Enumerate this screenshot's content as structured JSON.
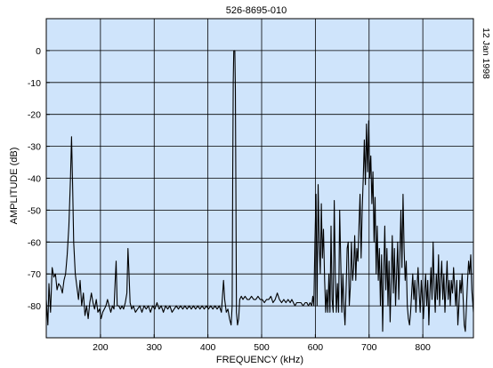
{
  "chart_data": {
    "type": "line",
    "title": "526-8695-010",
    "date_label": "12 Jan 1998",
    "xlabel": "FREQUENCY (kHz)",
    "ylabel": "AMPLITUDE (dB)",
    "xlim": [
      100,
      895
    ],
    "ylim": [
      -90,
      10
    ],
    "x_ticks": [
      200,
      300,
      400,
      500,
      600,
      700,
      800
    ],
    "y_ticks": [
      0,
      -10,
      -20,
      -30,
      -40,
      -50,
      -60,
      -70,
      -80
    ],
    "grid": true,
    "plot_background": "#cfe4fb",
    "line_color": "#000000",
    "series": [
      {
        "values": [
          [
            100,
            -78
          ],
          [
            103,
            -86
          ],
          [
            105,
            -73
          ],
          [
            108,
            -82
          ],
          [
            111,
            -68
          ],
          [
            114,
            -71
          ],
          [
            117,
            -70
          ],
          [
            120,
            -75
          ],
          [
            123,
            -73
          ],
          [
            127,
            -74
          ],
          [
            130,
            -76
          ],
          [
            133,
            -72
          ],
          [
            136,
            -70
          ],
          [
            139,
            -64
          ],
          [
            142,
            -55
          ],
          [
            145,
            -40
          ],
          [
            147,
            -27
          ],
          [
            149,
            -42
          ],
          [
            151,
            -60
          ],
          [
            154,
            -70
          ],
          [
            157,
            -74
          ],
          [
            160,
            -78
          ],
          [
            163,
            -72
          ],
          [
            166,
            -80
          ],
          [
            169,
            -76
          ],
          [
            172,
            -83
          ],
          [
            175,
            -80
          ],
          [
            178,
            -84
          ],
          [
            181,
            -79
          ],
          [
            184,
            -76
          ],
          [
            187,
            -79
          ],
          [
            190,
            -81
          ],
          [
            193,
            -78
          ],
          [
            196,
            -82
          ],
          [
            199,
            -81
          ],
          [
            202,
            -84
          ],
          [
            205,
            -82
          ],
          [
            208,
            -81
          ],
          [
            211,
            -80
          ],
          [
            214,
            -78
          ],
          [
            217,
            -80
          ],
          [
            220,
            -82
          ],
          [
            223,
            -80
          ],
          [
            226,
            -81
          ],
          [
            228,
            -73
          ],
          [
            230,
            -66
          ],
          [
            232,
            -80
          ],
          [
            235,
            -80
          ],
          [
            238,
            -81
          ],
          [
            241,
            -80
          ],
          [
            244,
            -81
          ],
          [
            247,
            -79
          ],
          [
            250,
            -76
          ],
          [
            252,
            -62
          ],
          [
            254,
            -70
          ],
          [
            256,
            -79
          ],
          [
            259,
            -81
          ],
          [
            262,
            -80
          ],
          [
            266,
            -82
          ],
          [
            270,
            -81
          ],
          [
            274,
            -80
          ],
          [
            278,
            -82
          ],
          [
            282,
            -80
          ],
          [
            286,
            -81
          ],
          [
            290,
            -80
          ],
          [
            294,
            -82
          ],
          [
            298,
            -80
          ],
          [
            302,
            -81
          ],
          [
            306,
            -79
          ],
          [
            310,
            -81
          ],
          [
            314,
            -80
          ],
          [
            318,
            -82
          ],
          [
            322,
            -80
          ],
          [
            326,
            -81
          ],
          [
            330,
            -80
          ],
          [
            334,
            -82
          ],
          [
            338,
            -81
          ],
          [
            342,
            -80
          ],
          [
            346,
            -81
          ],
          [
            350,
            -80
          ],
          [
            354,
            -81
          ],
          [
            358,
            -80
          ],
          [
            362,
            -81
          ],
          [
            366,
            -80
          ],
          [
            370,
            -81
          ],
          [
            374,
            -80
          ],
          [
            378,
            -81
          ],
          [
            382,
            -80
          ],
          [
            386,
            -81
          ],
          [
            390,
            -80
          ],
          [
            394,
            -81
          ],
          [
            398,
            -80
          ],
          [
            402,
            -81
          ],
          [
            406,
            -80
          ],
          [
            410,
            -81
          ],
          [
            414,
            -80
          ],
          [
            418,
            -81
          ],
          [
            422,
            -80
          ],
          [
            426,
            -82
          ],
          [
            428,
            -77
          ],
          [
            430,
            -72
          ],
          [
            432,
            -78
          ],
          [
            435,
            -82
          ],
          [
            438,
            -81
          ],
          [
            441,
            -84
          ],
          [
            444,
            -86
          ],
          [
            446,
            -80
          ],
          [
            447,
            -40
          ],
          [
            448,
            -10
          ],
          [
            449,
            0
          ],
          [
            451,
            0
          ],
          [
            452,
            -12
          ],
          [
            453,
            -45
          ],
          [
            454,
            -82
          ],
          [
            456,
            -86
          ],
          [
            458,
            -84
          ],
          [
            460,
            -78
          ],
          [
            463,
            -77
          ],
          [
            466,
            -78
          ],
          [
            470,
            -77
          ],
          [
            474,
            -78
          ],
          [
            478,
            -78
          ],
          [
            482,
            -77
          ],
          [
            486,
            -78
          ],
          [
            490,
            -78
          ],
          [
            494,
            -77
          ],
          [
            498,
            -78
          ],
          [
            502,
            -78
          ],
          [
            506,
            -79
          ],
          [
            510,
            -78
          ],
          [
            514,
            -78
          ],
          [
            518,
            -77
          ],
          [
            522,
            -79
          ],
          [
            526,
            -78
          ],
          [
            530,
            -76
          ],
          [
            534,
            -78
          ],
          [
            538,
            -79
          ],
          [
            542,
            -78
          ],
          [
            546,
            -79
          ],
          [
            550,
            -78
          ],
          [
            554,
            -79
          ],
          [
            557,
            -78
          ],
          [
            560,
            -79
          ],
          [
            563,
            -80
          ],
          [
            566,
            -79
          ],
          [
            570,
            -79
          ],
          [
            574,
            -79
          ],
          [
            578,
            -80
          ],
          [
            582,
            -79
          ],
          [
            585,
            -79
          ],
          [
            588,
            -80
          ],
          [
            591,
            -79
          ],
          [
            594,
            -80
          ],
          [
            596,
            -77
          ],
          [
            598,
            -80
          ],
          [
            600,
            -60
          ],
          [
            602,
            -45
          ],
          [
            604,
            -80
          ],
          [
            606,
            -42
          ],
          [
            608,
            -60
          ],
          [
            610,
            -70
          ],
          [
            612,
            -48
          ],
          [
            614,
            -65
          ],
          [
            616,
            -56
          ],
          [
            618,
            -72
          ],
          [
            620,
            -82
          ],
          [
            622,
            -75
          ],
          [
            624,
            -82
          ],
          [
            626,
            -70
          ],
          [
            628,
            -82
          ],
          [
            630,
            -55
          ],
          [
            632,
            -78
          ],
          [
            634,
            -82
          ],
          [
            636,
            -47
          ],
          [
            638,
            -70
          ],
          [
            640,
            -82
          ],
          [
            642,
            -73
          ],
          [
            644,
            -82
          ],
          [
            646,
            -50
          ],
          [
            648,
            -66
          ],
          [
            650,
            -82
          ],
          [
            652,
            -70
          ],
          [
            654,
            -80
          ],
          [
            656,
            -86
          ],
          [
            658,
            -75
          ],
          [
            660,
            -62
          ],
          [
            662,
            -60
          ],
          [
            664,
            -80
          ],
          [
            666,
            -74
          ],
          [
            668,
            -60
          ],
          [
            670,
            -72
          ],
          [
            672,
            -68
          ],
          [
            674,
            -58
          ],
          [
            676,
            -72
          ],
          [
            678,
            -62
          ],
          [
            680,
            -66
          ],
          [
            682,
            -55
          ],
          [
            684,
            -45
          ],
          [
            686,
            -65
          ],
          [
            688,
            -50
          ],
          [
            690,
            -40
          ],
          [
            692,
            -28
          ],
          [
            694,
            -42
          ],
          [
            696,
            -23
          ],
          [
            698,
            -38
          ],
          [
            700,
            -22
          ],
          [
            702,
            -40
          ],
          [
            704,
            -33
          ],
          [
            706,
            -48
          ],
          [
            708,
            -38
          ],
          [
            710,
            -60
          ],
          [
            712,
            -46
          ],
          [
            714,
            -70
          ],
          [
            716,
            -55
          ],
          [
            718,
            -72
          ],
          [
            720,
            -62
          ],
          [
            722,
            -80
          ],
          [
            724,
            -64
          ],
          [
            726,
            -88
          ],
          [
            728,
            -70
          ],
          [
            730,
            -55
          ],
          [
            732,
            -75
          ],
          [
            734,
            -62
          ],
          [
            736,
            -80
          ],
          [
            738,
            -66
          ],
          [
            740,
            -85
          ],
          [
            742,
            -72
          ],
          [
            744,
            -58
          ],
          [
            746,
            -76
          ],
          [
            748,
            -62
          ],
          [
            750,
            -80
          ],
          [
            752,
            -70
          ],
          [
            754,
            -60
          ],
          [
            756,
            -78
          ],
          [
            758,
            -65
          ],
          [
            760,
            -50
          ],
          [
            762,
            -68
          ],
          [
            764,
            -45
          ],
          [
            766,
            -62
          ],
          [
            768,
            -72
          ],
          [
            770,
            -66
          ],
          [
            772,
            -80
          ],
          [
            774,
            -84
          ],
          [
            776,
            -86
          ],
          [
            778,
            -82
          ],
          [
            780,
            -76
          ],
          [
            782,
            -70
          ],
          [
            784,
            -78
          ],
          [
            786,
            -72
          ],
          [
            788,
            -82
          ],
          [
            790,
            -74
          ],
          [
            792,
            -68
          ],
          [
            794,
            -76
          ],
          [
            796,
            -82
          ],
          [
            798,
            -72
          ],
          [
            800,
            -78
          ],
          [
            802,
            -84
          ],
          [
            804,
            -76
          ],
          [
            806,
            -70
          ],
          [
            808,
            -80
          ],
          [
            810,
            -72
          ],
          [
            812,
            -86
          ],
          [
            814,
            -76
          ],
          [
            816,
            -68
          ],
          [
            818,
            -78
          ],
          [
            820,
            -60
          ],
          [
            822,
            -74
          ],
          [
            824,
            -82
          ],
          [
            826,
            -70
          ],
          [
            828,
            -78
          ],
          [
            830,
            -64
          ],
          [
            832,
            -80
          ],
          [
            834,
            -72
          ],
          [
            836,
            -66
          ],
          [
            838,
            -78
          ],
          [
            840,
            -70
          ],
          [
            842,
            -82
          ],
          [
            844,
            -74
          ],
          [
            846,
            -66
          ],
          [
            848,
            -78
          ],
          [
            850,
            -72
          ],
          [
            852,
            -80
          ],
          [
            854,
            -72
          ],
          [
            856,
            -76
          ],
          [
            858,
            -68
          ],
          [
            860,
            -74
          ],
          [
            862,
            -80
          ],
          [
            864,
            -72
          ],
          [
            866,
            -86
          ],
          [
            868,
            -80
          ],
          [
            870,
            -72
          ],
          [
            872,
            -76
          ],
          [
            874,
            -70
          ],
          [
            876,
            -78
          ],
          [
            878,
            -86
          ],
          [
            880,
            -88
          ],
          [
            882,
            -80
          ],
          [
            884,
            -72
          ],
          [
            886,
            -66
          ],
          [
            888,
            -70
          ],
          [
            890,
            -64
          ],
          [
            892,
            -75
          ],
          [
            895,
            -82
          ]
        ]
      }
    ]
  }
}
